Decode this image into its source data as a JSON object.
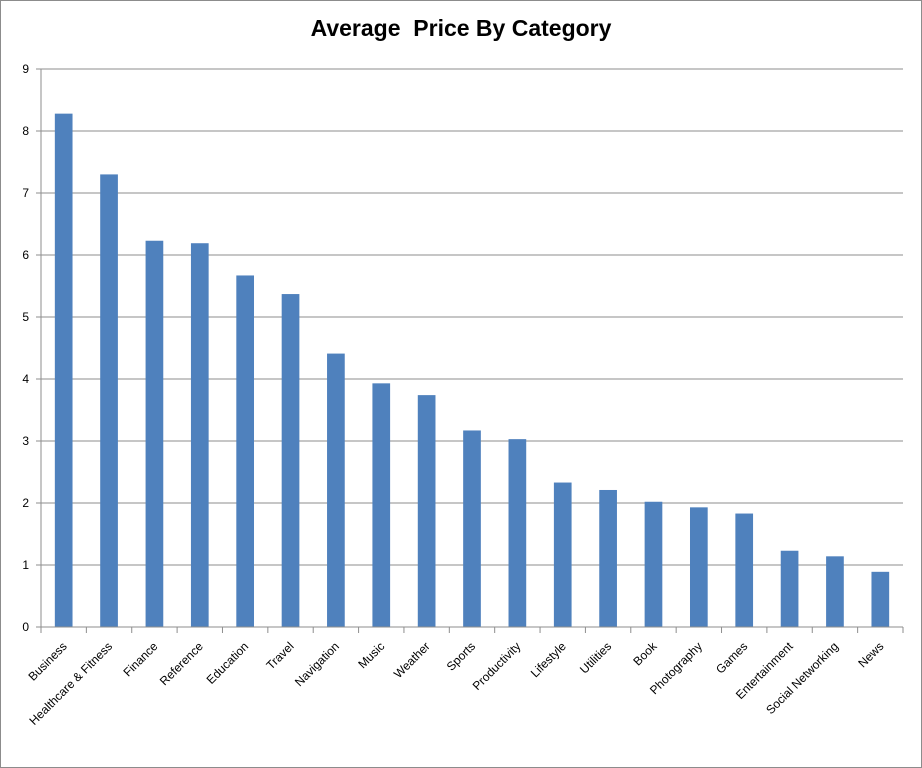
{
  "chart_data": {
    "type": "bar",
    "title": "Average  Price By Category",
    "xlabel": "",
    "ylabel": "",
    "ylim": [
      0,
      9
    ],
    "yticks": [
      "0",
      "1",
      "2",
      "3",
      "4",
      "5",
      "6",
      "7",
      "8",
      "9"
    ],
    "grid": true,
    "legend": "none",
    "bar_color": "#4f81bd",
    "categories": [
      "Business",
      "Healthcare & Fitness",
      "Finance",
      "Reference",
      "Education",
      "Travel",
      "Navigation",
      "Music",
      "Weather",
      "Sports",
      "Productivity",
      "Lifestyle",
      "Utilities",
      "Book",
      "Photography",
      "Games",
      "Entertainment",
      "Social Networking",
      "News"
    ],
    "values": [
      8.28,
      7.3,
      6.23,
      6.19,
      5.67,
      5.37,
      4.41,
      3.93,
      3.74,
      3.17,
      3.03,
      2.33,
      2.21,
      2.02,
      1.93,
      1.83,
      1.23,
      1.14,
      0.89
    ]
  }
}
